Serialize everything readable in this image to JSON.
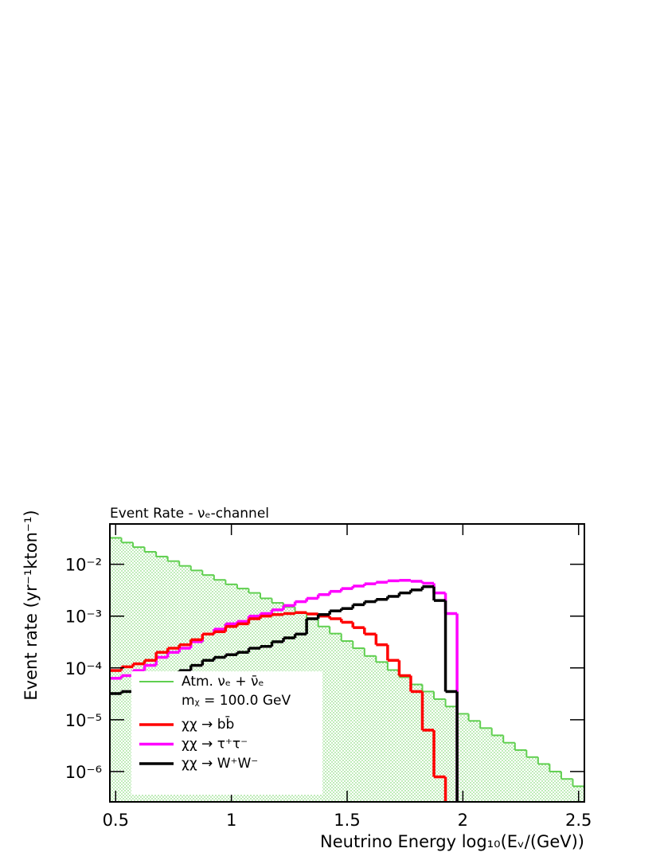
{
  "chart_data": {
    "type": "histogram",
    "title": "Event Rate - νₑ-channel",
    "ylabel": "Event rate (yr⁻¹kton⁻¹)",
    "xlabel": "Neutrino Energy log₁₀(Eᵥ/(GeV))",
    "annotation": "mᵪ = 100.0 GeV",
    "log_y": true,
    "xlim": [
      0.475,
      2.525
    ],
    "ylim": [
      2.6e-07,
      0.06
    ],
    "xticks": [
      0.5,
      1,
      1.5,
      2,
      2.5
    ],
    "yticks": [
      {
        "value": 1e-06,
        "label": "10⁻⁶"
      },
      {
        "value": 1e-05,
        "label": "10⁻⁵"
      },
      {
        "value": 0.0001,
        "label": "10⁻⁴"
      },
      {
        "value": 0.001,
        "label": "10⁻³"
      },
      {
        "value": 0.01,
        "label": "10⁻²"
      }
    ],
    "bins": [
      0.475,
      0.525,
      0.575,
      0.625,
      0.675,
      0.725,
      0.775,
      0.825,
      0.875,
      0.925,
      0.975,
      1.025,
      1.075,
      1.125,
      1.175,
      1.225,
      1.275,
      1.325,
      1.375,
      1.425,
      1.475,
      1.525,
      1.575,
      1.625,
      1.675,
      1.725,
      1.775,
      1.825,
      1.875,
      1.925,
      1.975,
      2.025,
      2.075,
      2.125,
      2.175,
      2.225,
      2.275,
      2.325,
      2.375,
      2.425,
      2.475,
      2.525
    ],
    "series": [
      {
        "name": "Atm. νₑ + ν̄ₑ",
        "color": "#5fcf4f",
        "filled": true,
        "values": [
          0.0324,
          0.0263,
          0.0214,
          0.0174,
          0.0141,
          0.0115,
          0.0093,
          0.0076,
          0.0062,
          0.005,
          0.0041,
          0.0034,
          0.0028,
          0.0022,
          0.0018,
          0.0015,
          0.0012,
          0.00087,
          0.00063,
          0.00046,
          0.00033,
          0.00024,
          0.00017,
          0.00013,
          9.1e-05,
          6.6e-05,
          4.8e-05,
          3.5e-05,
          2.5e-05,
          1.8e-05,
          1.3e-05,
          9.5e-06,
          6.9e-06,
          5e-06,
          3.6e-06,
          2.6e-06,
          1.9e-06,
          1.4e-06,
          1e-06,
          7.2e-07,
          5.2e-07
        ]
      },
      {
        "name": "χχ → bb̄",
        "color": "#ff0000",
        "values": [
          8.9e-05,
          0.000105,
          0.00012,
          0.00014,
          0.0002,
          0.00024,
          0.00028,
          0.00035,
          0.00045,
          0.0005,
          0.00063,
          0.00071,
          0.00089,
          0.001,
          0.00107,
          0.00112,
          0.00117,
          0.0011,
          0.001,
          0.00089,
          0.00076,
          0.0006,
          0.00045,
          0.00028,
          0.00014,
          7.1e-05,
          3.5e-05,
          6.3e-06,
          7.9e-07,
          0,
          0,
          0,
          0,
          0,
          0,
          0,
          0,
          0,
          0,
          0,
          0
        ]
      },
      {
        "name": "χχ → τ⁺τ⁻",
        "color": "#ff00ff",
        "values": [
          6.3e-05,
          7.1e-05,
          8.9e-05,
          0.000112,
          0.00016,
          0.0002,
          0.00024,
          0.00032,
          0.00045,
          0.00056,
          0.00071,
          0.00079,
          0.001,
          0.00112,
          0.00132,
          0.0016,
          0.0019,
          0.0022,
          0.0026,
          0.003,
          0.0034,
          0.0038,
          0.0042,
          0.0045,
          0.0048,
          0.0049,
          0.0047,
          0.0043,
          0.0028,
          0.00112,
          0,
          0,
          0,
          0,
          0,
          0,
          0,
          0,
          0,
          0,
          0
        ]
      },
      {
        "name": "χχ → W⁺W⁻",
        "color": "#000000",
        "values": [
          3.2e-05,
          3.5e-05,
          4.2e-05,
          5e-05,
          6.3e-05,
          7.6e-05,
          8.9e-05,
          0.000112,
          0.00014,
          0.00016,
          0.00018,
          0.0002,
          0.00024,
          0.00026,
          0.00032,
          0.00038,
          0.00045,
          0.00089,
          0.00107,
          0.00126,
          0.0014,
          0.00166,
          0.0019,
          0.0021,
          0.0024,
          0.0028,
          0.0032,
          0.0037,
          0.002,
          3.5e-05,
          0,
          0,
          0,
          0,
          0,
          0,
          0,
          0,
          0,
          0,
          0
        ]
      }
    ]
  }
}
